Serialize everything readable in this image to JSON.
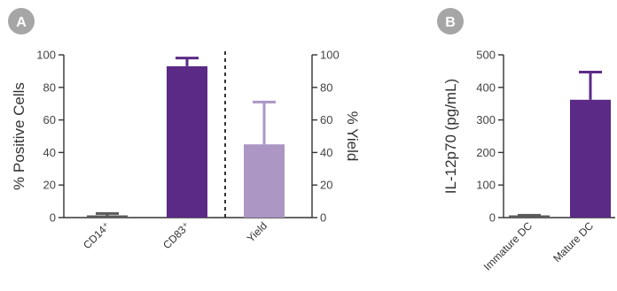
{
  "panels": {
    "a": {
      "badge": "A"
    },
    "b": {
      "badge": "B"
    }
  },
  "chart_data": [
    {
      "type": "bar",
      "panel": "A",
      "categories": [
        "CD14⁺",
        "CD83⁺",
        "Yield"
      ],
      "values": [
        1,
        93,
        45
      ],
      "errors": [
        1.5,
        5,
        26
      ],
      "axes": [
        "left",
        "left",
        "right"
      ],
      "colors": [
        "#5a5a5a",
        "#5b2a86",
        "#ab96c4"
      ],
      "ylabel_left": "% Positive Cells",
      "ylabel_right": "% Yield",
      "ylim": [
        0,
        100
      ],
      "yticks": [
        0,
        20,
        40,
        60,
        80,
        100
      ],
      "divider_after_index": 1,
      "grid": false
    },
    {
      "type": "bar",
      "panel": "B",
      "categories": [
        "Immature DC",
        "Mature DC"
      ],
      "values": [
        2,
        362
      ],
      "errors": [
        5,
        85
      ],
      "colors": [
        "#5a5a5a",
        "#5b2a86"
      ],
      "ylabel": "IL-12p70 (pg/mL)",
      "ylim": [
        0,
        500
      ],
      "yticks": [
        0,
        100,
        200,
        300,
        400,
        500
      ],
      "grid": false
    }
  ],
  "badge_color": "#a6a6a6"
}
